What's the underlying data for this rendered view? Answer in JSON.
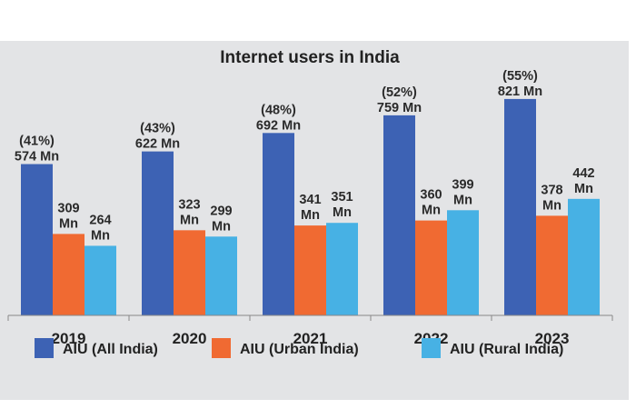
{
  "chart_data": {
    "type": "bar",
    "title": "Internet users in India",
    "categories": [
      "2019",
      "2020",
      "2021",
      "2022",
      "2023"
    ],
    "series": [
      {
        "name": "AIU (All India)",
        "color": "#3d62b4",
        "values": [
          574,
          622,
          692,
          759,
          821
        ],
        "labels": [
          "574 Mn",
          "622 Mn",
          "692 Mn",
          "759 Mn",
          "821 Mn"
        ],
        "share_labels": [
          "(41%)",
          "(43%)",
          "(48%)",
          "(52%)",
          "(55%)"
        ]
      },
      {
        "name": "AIU (Urban India)",
        "color": "#f06a32",
        "values": [
          309,
          323,
          341,
          360,
          378
        ],
        "labels": [
          "309",
          "323",
          "341",
          "360",
          "378"
        ]
      },
      {
        "name": "AIU (Rural  India)",
        "color": "#47b1e4",
        "values": [
          264,
          299,
          351,
          399,
          442
        ],
        "labels": [
          "264",
          "299",
          "351",
          "399",
          "442"
        ]
      }
    ],
    "unit_label": "Mn",
    "xlabel": "",
    "ylabel": "",
    "ylim": [
      0,
      900
    ],
    "grid": false,
    "legend_position": "bottom"
  }
}
